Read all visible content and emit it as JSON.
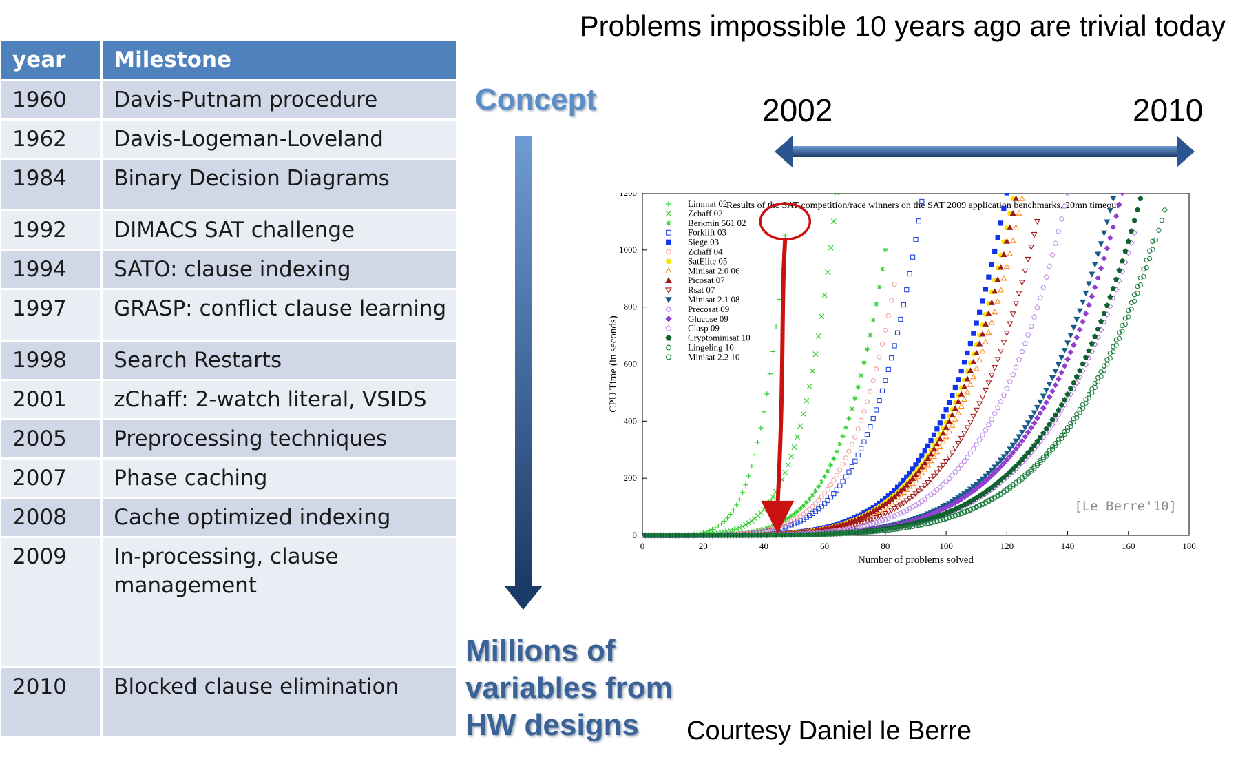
{
  "headline": "Problems impossible 10 years ago are trivial today",
  "table": {
    "headers": [
      "year",
      "Milestone"
    ],
    "rows": [
      {
        "year": "1960",
        "milestone": "Davis-Putnam procedure"
      },
      {
        "year": "1962",
        "milestone": "Davis-Logeman-Loveland"
      },
      {
        "year": "1984",
        "milestone": "Binary Decision Diagrams"
      },
      {
        "year": "1992",
        "milestone": "DIMACS SAT challenge"
      },
      {
        "year": "1994",
        "milestone": "SATO: clause indexing"
      },
      {
        "year": "1997",
        "milestone": "GRASP: conflict clause learning"
      },
      {
        "year": "1998",
        "milestone": "Search Restarts"
      },
      {
        "year": "2001",
        "milestone": "zChaff: 2-watch literal, VSIDS"
      },
      {
        "year": "2005",
        "milestone": "Preprocessing techniques"
      },
      {
        "year": "2007",
        "milestone": "Phase caching"
      },
      {
        "year": "2008",
        "milestone": "Cache optimized indexing"
      },
      {
        "year": "2009",
        "milestone": "In-processing, clause management"
      },
      {
        "year": "2010",
        "milestone": "Blocked clause elimination"
      }
    ]
  },
  "concept_label": "Concept",
  "millions_label": "Millions of variables from HW designs",
  "year_range": {
    "start": "2002",
    "end": "2010"
  },
  "courtesy": "Courtesy  Daniel le Berre",
  "colors": {
    "table_header": "#4f81bd",
    "row_odd": "#d0d8e8",
    "row_even": "#e9edf4",
    "highlight": "#cc1111"
  },
  "chart_data": {
    "type": "scatter",
    "title": "Results of the SAT competition/race winners on the SAT 2009 application benchmarks, 20mn timeout",
    "xlabel": "Number of problems solved",
    "ylabel": "CPU Time (in seconds)",
    "xlim": [
      0,
      180
    ],
    "ylim": [
      0,
      1200
    ],
    "xticks": [
      "0",
      "20",
      "40",
      "60",
      "80",
      "100",
      "120",
      "140",
      "160",
      "180"
    ],
    "yticks": [
      "0",
      "200",
      "400",
      "600",
      "800",
      "1000",
      "1200"
    ],
    "legend_position": "top-left",
    "watermark": "[Le Berre'10]",
    "highlight_series": "Berkmin 561 02",
    "series": [
      {
        "name": "Limmat 02",
        "marker": "plus",
        "color": "#33cc33",
        "solved": 47,
        "max_time": 1050
      },
      {
        "name": "Zchaff 02",
        "marker": "cross",
        "color": "#33cc33",
        "solved": 64,
        "max_time": 1200
      },
      {
        "name": "Berkmin 561 02",
        "marker": "star",
        "color": "#33cc33",
        "solved": 80,
        "max_time": 1000
      },
      {
        "name": "Forklift 03",
        "marker": "square-open",
        "color": "#2244dd",
        "solved": 92,
        "max_time": 1170
      },
      {
        "name": "Siege 03",
        "marker": "square",
        "color": "#1133ee",
        "solved": 120,
        "max_time": 1200
      },
      {
        "name": "Zchaff 04",
        "marker": "circle-open",
        "color": "#f4a0a0",
        "solved": 83,
        "max_time": 880
      },
      {
        "name": "SatElite 05",
        "marker": "circle",
        "color": "#f2e600",
        "solved": 122,
        "max_time": 1180
      },
      {
        "name": "Minisat 2.0 06",
        "marker": "triangle-open",
        "color": "#ff8c1a",
        "solved": 125,
        "max_time": 1180
      },
      {
        "name": "Picosat 07",
        "marker": "triangle",
        "color": "#a01818",
        "solved": 123,
        "max_time": 1180
      },
      {
        "name": "Rsat 07",
        "marker": "tri-down-open",
        "color": "#a01818",
        "solved": 130,
        "max_time": 1100
      },
      {
        "name": "Minisat 2.1 08",
        "marker": "tri-down",
        "color": "#1a5a8a",
        "solved": 155,
        "max_time": 1180
      },
      {
        "name": "Precosat 09",
        "marker": "diamond-open",
        "color": "#b070e0",
        "solved": 162,
        "max_time": 1060
      },
      {
        "name": "Glucose 09",
        "marker": "diamond",
        "color": "#9040d0",
        "solved": 158,
        "max_time": 1200
      },
      {
        "name": "Clasp 09",
        "marker": "pentagon-open",
        "color": "#c090e8",
        "solved": 140,
        "max_time": 1200
      },
      {
        "name": "Cryptominisat 10",
        "marker": "pentagon",
        "color": "#106030",
        "solved": 164,
        "max_time": 1180
      },
      {
        "name": "Lingeling 10",
        "marker": "circle-open",
        "color": "#208040",
        "solved": 172,
        "max_time": 1140
      },
      {
        "name": "Minisat 2.2 10",
        "marker": "circle-half",
        "color": "#208040",
        "solved": 168,
        "max_time": 1030
      }
    ]
  }
}
